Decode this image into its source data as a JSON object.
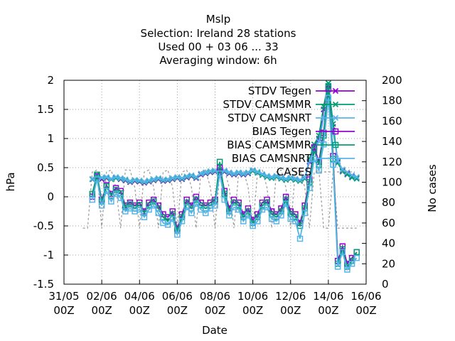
{
  "chart_data": {
    "type": "line",
    "title_lines": [
      "Mslp",
      "Selection: Ireland      28 stations",
      "Used  00 + 03 06 ... 33",
      "Averaging window:  6h"
    ],
    "xlabel": "Date",
    "ylabel": "hPa",
    "y2label": "No cases",
    "x_ticks": [
      {
        "value": 0,
        "line1": "31/05",
        "line2": "00Z"
      },
      {
        "value": 2,
        "line1": "02/06",
        "line2": "00Z"
      },
      {
        "value": 4,
        "line1": "04/06",
        "line2": "00Z"
      },
      {
        "value": 6,
        "line1": "06/06",
        "line2": "00Z"
      },
      {
        "value": 8,
        "line1": "08/06",
        "line2": "00Z"
      },
      {
        "value": 10,
        "line1": "10/06",
        "line2": "00Z"
      },
      {
        "value": 12,
        "line1": "12/06",
        "line2": "00Z"
      },
      {
        "value": 14,
        "line1": "14/06",
        "line2": "00Z"
      },
      {
        "value": 16,
        "line1": "16/06",
        "line2": "00Z"
      }
    ],
    "xlim": [
      0,
      16
    ],
    "ylim": [
      -1.5,
      2
    ],
    "y_ticks": [
      "-1.5",
      "-1",
      "-0.5",
      "0",
      "0.5",
      "1",
      "1.5",
      "2"
    ],
    "y2lim": [
      0,
      200
    ],
    "y2_ticks": [
      "0",
      "20",
      "40",
      "60",
      "80",
      "100",
      "120",
      "140",
      "160",
      "180",
      "200"
    ],
    "grid": true,
    "legend_position": "top-right",
    "series": [
      {
        "name": "STDV Tegen",
        "color": "#9400d3",
        "marker": "x",
        "axis": "y1",
        "x": [
          1.5,
          1.75,
          2,
          2.25,
          2.5,
          2.75,
          3,
          3.25,
          3.5,
          3.75,
          4,
          4.25,
          4.5,
          4.75,
          5,
          5.25,
          5.5,
          5.75,
          6,
          6.25,
          6.5,
          6.75,
          7,
          7.25,
          7.5,
          7.75,
          8,
          8.25,
          8.5,
          8.75,
          9,
          9.25,
          9.5,
          9.75,
          10,
          10.25,
          10.5,
          10.75,
          11,
          11.25,
          11.5,
          11.75,
          12,
          12.25,
          12.5,
          12.75,
          13,
          13.25,
          13.5,
          13.75,
          14,
          14.25,
          14.5,
          14.75,
          15,
          15.25,
          15.5
        ],
        "values": [
          0.3,
          0.35,
          0.3,
          0.32,
          0.3,
          0.33,
          0.3,
          0.28,
          0.25,
          0.27,
          0.26,
          0.24,
          0.26,
          0.28,
          0.3,
          0.27,
          0.28,
          0.3,
          0.32,
          0.3,
          0.33,
          0.35,
          0.32,
          0.38,
          0.4,
          0.42,
          0.43,
          0.45,
          0.43,
          0.4,
          0.38,
          0.4,
          0.38,
          0.4,
          0.45,
          0.42,
          0.38,
          0.35,
          0.33,
          0.35,
          0.32,
          0.3,
          0.32,
          0.3,
          0.28,
          0.32,
          0.6,
          0.85,
          1.0,
          1.5,
          1.9,
          1.2,
          0.6,
          0.45,
          0.4,
          0.35,
          0.33
        ]
      },
      {
        "name": "STDV CAMSMMR",
        "color": "#009e73",
        "marker": "x",
        "axis": "y1",
        "x": [
          1.5,
          1.75,
          2,
          2.25,
          2.5,
          2.75,
          3,
          3.25,
          3.5,
          3.75,
          4,
          4.25,
          4.5,
          4.75,
          5,
          5.25,
          5.5,
          5.75,
          6,
          6.25,
          6.5,
          6.75,
          7,
          7.25,
          7.5,
          7.75,
          8,
          8.25,
          8.5,
          8.75,
          9,
          9.25,
          9.5,
          9.75,
          10,
          10.25,
          10.5,
          10.75,
          11,
          11.25,
          11.5,
          11.75,
          12,
          12.25,
          12.5,
          12.75,
          13,
          13.25,
          13.5,
          13.75,
          14,
          14.25,
          14.5,
          14.75,
          15,
          15.25,
          15.5
        ],
        "values": [
          0.3,
          0.38,
          0.32,
          0.33,
          0.3,
          0.32,
          0.31,
          0.29,
          0.26,
          0.28,
          0.27,
          0.25,
          0.27,
          0.29,
          0.31,
          0.28,
          0.29,
          0.31,
          0.33,
          0.31,
          0.34,
          0.36,
          0.33,
          0.39,
          0.41,
          0.43,
          0.44,
          0.46,
          0.44,
          0.41,
          0.39,
          0.41,
          0.39,
          0.41,
          0.44,
          0.41,
          0.37,
          0.34,
          0.32,
          0.34,
          0.31,
          0.29,
          0.31,
          0.29,
          0.27,
          0.31,
          0.65,
          0.9,
          1.05,
          1.55,
          1.95,
          1.25,
          0.58,
          0.43,
          0.38,
          0.33,
          0.31
        ]
      },
      {
        "name": "STDV CAMSNRT",
        "color": "#56b4e9",
        "marker": "x",
        "axis": "y1",
        "x": [
          1.5,
          1.75,
          2,
          2.25,
          2.5,
          2.75,
          3,
          3.25,
          3.5,
          3.75,
          4,
          4.25,
          4.5,
          4.75,
          5,
          5.25,
          5.5,
          5.75,
          6,
          6.25,
          6.5,
          6.75,
          7,
          7.25,
          7.5,
          7.75,
          8,
          8.25,
          8.5,
          8.75,
          9,
          9.25,
          9.5,
          9.75,
          10,
          10.25,
          10.5,
          10.75,
          11,
          11.25,
          11.5,
          11.75,
          12,
          12.25,
          12.5,
          12.75,
          13,
          13.25,
          13.5,
          13.75,
          14,
          14.25,
          14.5,
          14.75,
          15,
          15.25,
          15.5
        ],
        "values": [
          0.31,
          0.36,
          0.33,
          0.34,
          0.31,
          0.34,
          0.32,
          0.3,
          0.27,
          0.29,
          0.28,
          0.26,
          0.28,
          0.3,
          0.32,
          0.29,
          0.3,
          0.32,
          0.34,
          0.32,
          0.35,
          0.37,
          0.34,
          0.4,
          0.42,
          0.44,
          0.45,
          0.47,
          0.45,
          0.42,
          0.4,
          0.42,
          0.4,
          0.42,
          0.46,
          0.43,
          0.39,
          0.36,
          0.34,
          0.36,
          0.33,
          0.31,
          0.33,
          0.31,
          0.29,
          0.33,
          0.62,
          0.8,
          0.95,
          1.35,
          1.7,
          1.1,
          0.62,
          0.47,
          0.42,
          0.37,
          0.34
        ]
      },
      {
        "name": "BIAS Tegen",
        "color": "#9400d3",
        "marker": "square",
        "axis": "y1",
        "x": [
          1.5,
          1.75,
          2,
          2.25,
          2.5,
          2.75,
          3,
          3.25,
          3.5,
          3.75,
          4,
          4.25,
          4.5,
          4.75,
          5,
          5.25,
          5.5,
          5.75,
          6,
          6.25,
          6.5,
          6.75,
          7,
          7.25,
          7.5,
          7.75,
          8,
          8.25,
          8.5,
          8.75,
          9,
          9.25,
          9.5,
          9.75,
          10,
          10.25,
          10.5,
          10.75,
          11,
          11.25,
          11.5,
          11.75,
          12,
          12.25,
          12.5,
          12.75,
          13,
          13.25,
          13.5,
          13.75,
          14,
          14.25,
          14.5,
          14.75,
          15,
          15.25,
          15.5
        ],
        "values": [
          0.0,
          0.35,
          -0.05,
          0.2,
          0.05,
          0.15,
          0.1,
          -0.15,
          -0.1,
          -0.15,
          -0.1,
          -0.25,
          -0.1,
          -0.05,
          -0.15,
          -0.3,
          -0.35,
          -0.25,
          -0.55,
          -0.3,
          -0.05,
          -0.15,
          0.0,
          -0.1,
          -0.15,
          -0.1,
          -0.05,
          0.5,
          0.1,
          -0.2,
          -0.05,
          -0.1,
          -0.3,
          -0.2,
          -0.4,
          -0.3,
          -0.1,
          -0.05,
          -0.25,
          -0.3,
          -0.2,
          0.0,
          -0.25,
          -0.3,
          -0.45,
          -0.15,
          0.3,
          0.85,
          0.6,
          1.1,
          1.85,
          0.7,
          -1.1,
          -0.85,
          -1.15,
          -1.05,
          -0.95
        ]
      },
      {
        "name": "BIAS CAMSMMR",
        "color": "#009e73",
        "marker": "square",
        "axis": "y1",
        "x": [
          1.5,
          1.75,
          2,
          2.25,
          2.5,
          2.75,
          3,
          3.25,
          3.5,
          3.75,
          4,
          4.25,
          4.5,
          4.75,
          5,
          5.25,
          5.5,
          5.75,
          6,
          6.25,
          6.5,
          6.75,
          7,
          7.25,
          7.5,
          7.75,
          8,
          8.25,
          8.5,
          8.75,
          9,
          9.25,
          9.5,
          9.75,
          10,
          10.25,
          10.5,
          10.75,
          11,
          11.25,
          11.5,
          11.75,
          12,
          12.25,
          12.5,
          12.75,
          13,
          13.25,
          13.5,
          13.75,
          14,
          14.25,
          14.5,
          14.75,
          15,
          15.25,
          15.5
        ],
        "values": [
          0.05,
          0.38,
          -0.08,
          0.18,
          0.02,
          0.12,
          0.06,
          -0.18,
          -0.13,
          -0.2,
          -0.14,
          -0.28,
          -0.15,
          -0.08,
          -0.2,
          -0.35,
          -0.42,
          -0.3,
          -0.58,
          -0.35,
          -0.1,
          -0.2,
          -0.05,
          -0.15,
          -0.2,
          -0.15,
          -0.08,
          0.6,
          0.05,
          -0.25,
          -0.1,
          -0.15,
          -0.35,
          -0.25,
          -0.45,
          -0.35,
          -0.15,
          -0.1,
          -0.3,
          -0.35,
          -0.25,
          -0.05,
          -0.3,
          -0.35,
          -0.5,
          -0.2,
          0.25,
          0.8,
          0.55,
          1.05,
          1.9,
          0.65,
          -1.15,
          -0.9,
          -1.2,
          -1.1,
          -0.95
        ]
      },
      {
        "name": "BIAS CAMSNRT",
        "color": "#56b4e9",
        "marker": "square",
        "axis": "y1",
        "x": [
          1.5,
          1.75,
          2,
          2.25,
          2.5,
          2.75,
          3,
          3.25,
          3.5,
          3.75,
          4,
          4.25,
          4.5,
          4.75,
          5,
          5.25,
          5.5,
          5.75,
          6,
          6.25,
          6.5,
          6.75,
          7,
          7.25,
          7.5,
          7.75,
          8,
          8.25,
          8.5,
          8.75,
          9,
          9.25,
          9.5,
          9.75,
          10,
          10.25,
          10.5,
          10.75,
          11,
          11.25,
          11.5,
          11.75,
          12,
          12.25,
          12.5,
          12.75,
          13,
          13.25,
          13.5,
          13.75,
          14,
          14.25,
          14.5,
          14.75,
          15,
          15.25,
          15.5
        ],
        "values": [
          -0.05,
          0.3,
          -0.15,
          0.1,
          -0.08,
          0.05,
          -0.02,
          -0.25,
          -0.2,
          -0.25,
          -0.22,
          -0.35,
          -0.22,
          -0.15,
          -0.28,
          -0.45,
          -0.48,
          -0.38,
          -0.65,
          -0.42,
          -0.18,
          -0.28,
          -0.12,
          -0.22,
          -0.28,
          -0.2,
          -0.15,
          0.4,
          -0.05,
          -0.32,
          -0.18,
          -0.22,
          -0.42,
          -0.32,
          -0.5,
          -0.42,
          -0.22,
          -0.18,
          -0.38,
          -0.42,
          -0.32,
          -0.12,
          -0.38,
          -0.42,
          -0.72,
          -0.28,
          0.15,
          0.65,
          0.45,
          0.9,
          1.7,
          0.55,
          -1.2,
          -0.95,
          -1.25,
          -1.15,
          -1.05
        ]
      },
      {
        "name": "CASES",
        "color": "#999999",
        "marker": "none",
        "dash": true,
        "axis": "y2",
        "x": [
          1.0,
          1.25,
          1.5,
          1.75,
          2.0,
          2.25,
          2.5,
          2.75,
          3.0,
          3.25,
          3.5,
          3.75,
          4.0,
          4.25,
          4.5,
          4.75,
          5.0,
          5.25,
          5.5,
          5.75,
          6.0,
          6.25,
          6.5,
          6.75,
          7.0,
          7.25,
          7.5,
          7.75,
          8.0,
          8.25,
          8.5,
          8.75,
          9.0,
          9.25,
          9.5,
          9.75,
          10.0,
          10.25,
          10.5,
          10.75,
          11.0,
          11.25,
          11.5,
          11.75,
          12.0,
          12.25,
          12.5,
          12.75,
          13.0,
          13.25,
          13.5,
          13.75,
          14.0,
          14.25,
          14.5,
          14.75,
          15.0,
          15.25,
          15.5
        ],
        "values": [
          55,
          55,
          110,
          112,
          55,
          110,
          112,
          95,
          55,
          112,
          112,
          95,
          55,
          110,
          112,
          95,
          55,
          110,
          112,
          95,
          55,
          110,
          112,
          95,
          55,
          110,
          112,
          95,
          55,
          110,
          112,
          95,
          55,
          110,
          112,
          95,
          55,
          110,
          112,
          95,
          55,
          110,
          112,
          95,
          55,
          110,
          112,
          95,
          55,
          110,
          112,
          55,
          55,
          110,
          55,
          55,
          55,
          55,
          55
        ]
      }
    ]
  }
}
